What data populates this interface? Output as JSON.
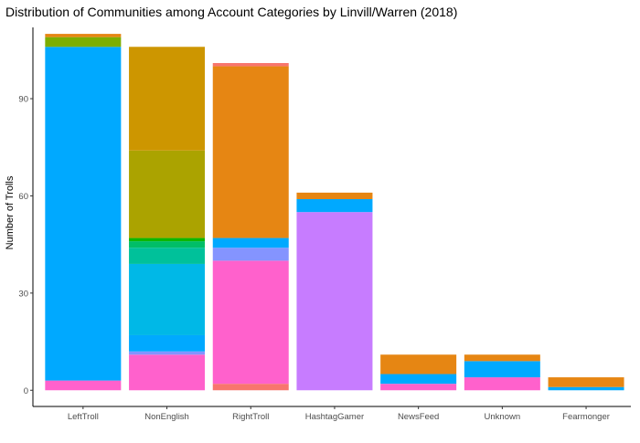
{
  "chart_data": {
    "type": "bar",
    "stacked": true,
    "title": "Distribution of Communities among Account Categories by Linvill/Warren (2018)",
    "xlabel": "",
    "ylabel": "Number of Trolls",
    "ylim": [
      -5,
      112
    ],
    "yticks": [
      0,
      30,
      60,
      90
    ],
    "categories": [
      "LeftTroll",
      "NonEnglish",
      "RightTroll",
      "HashtagGamer",
      "NewsFeed",
      "Unknown",
      "Fearmonger"
    ],
    "grid": false,
    "legend": "none",
    "stacks": [
      [
        {
          "value": 3,
          "color": "#FF61CC"
        },
        {
          "value": 103,
          "color": "#00A9FF"
        },
        {
          "value": 3,
          "color": "#7CAE00"
        },
        {
          "value": 1,
          "color": "#E68613"
        }
      ],
      [
        {
          "value": 11,
          "color": "#FF61CC"
        },
        {
          "value": 1,
          "color": "#8494FF"
        },
        {
          "value": 5,
          "color": "#00A9FF"
        },
        {
          "value": 22,
          "color": "#00B8E7"
        },
        {
          "value": 5,
          "color": "#00C19A"
        },
        {
          "value": 2,
          "color": "#00BE67"
        },
        {
          "value": 1,
          "color": "#0CB702"
        },
        {
          "value": 27,
          "color": "#ABA300"
        },
        {
          "value": 32,
          "color": "#CD9600"
        }
      ],
      [
        {
          "value": 2,
          "color": "#F8766D"
        },
        {
          "value": 38,
          "color": "#FF61CC"
        },
        {
          "value": 4,
          "color": "#8494FF"
        },
        {
          "value": 3,
          "color": "#00A9FF"
        },
        {
          "value": 53,
          "color": "#E68613"
        },
        {
          "value": 1,
          "color": "#F8766D"
        }
      ],
      [
        {
          "value": 55,
          "color": "#C77CFF"
        },
        {
          "value": 4,
          "color": "#00A9FF"
        },
        {
          "value": 2,
          "color": "#E68613"
        }
      ],
      [
        {
          "value": 2,
          "color": "#FF61CC"
        },
        {
          "value": 3,
          "color": "#00A9FF"
        },
        {
          "value": 6,
          "color": "#E68613"
        }
      ],
      [
        {
          "value": 4,
          "color": "#FF61CC"
        },
        {
          "value": 5,
          "color": "#00A9FF"
        },
        {
          "value": 2,
          "color": "#E68613"
        }
      ],
      [
        {
          "value": 1,
          "color": "#00A9FF"
        },
        {
          "value": 3,
          "color": "#E68613"
        }
      ]
    ]
  }
}
